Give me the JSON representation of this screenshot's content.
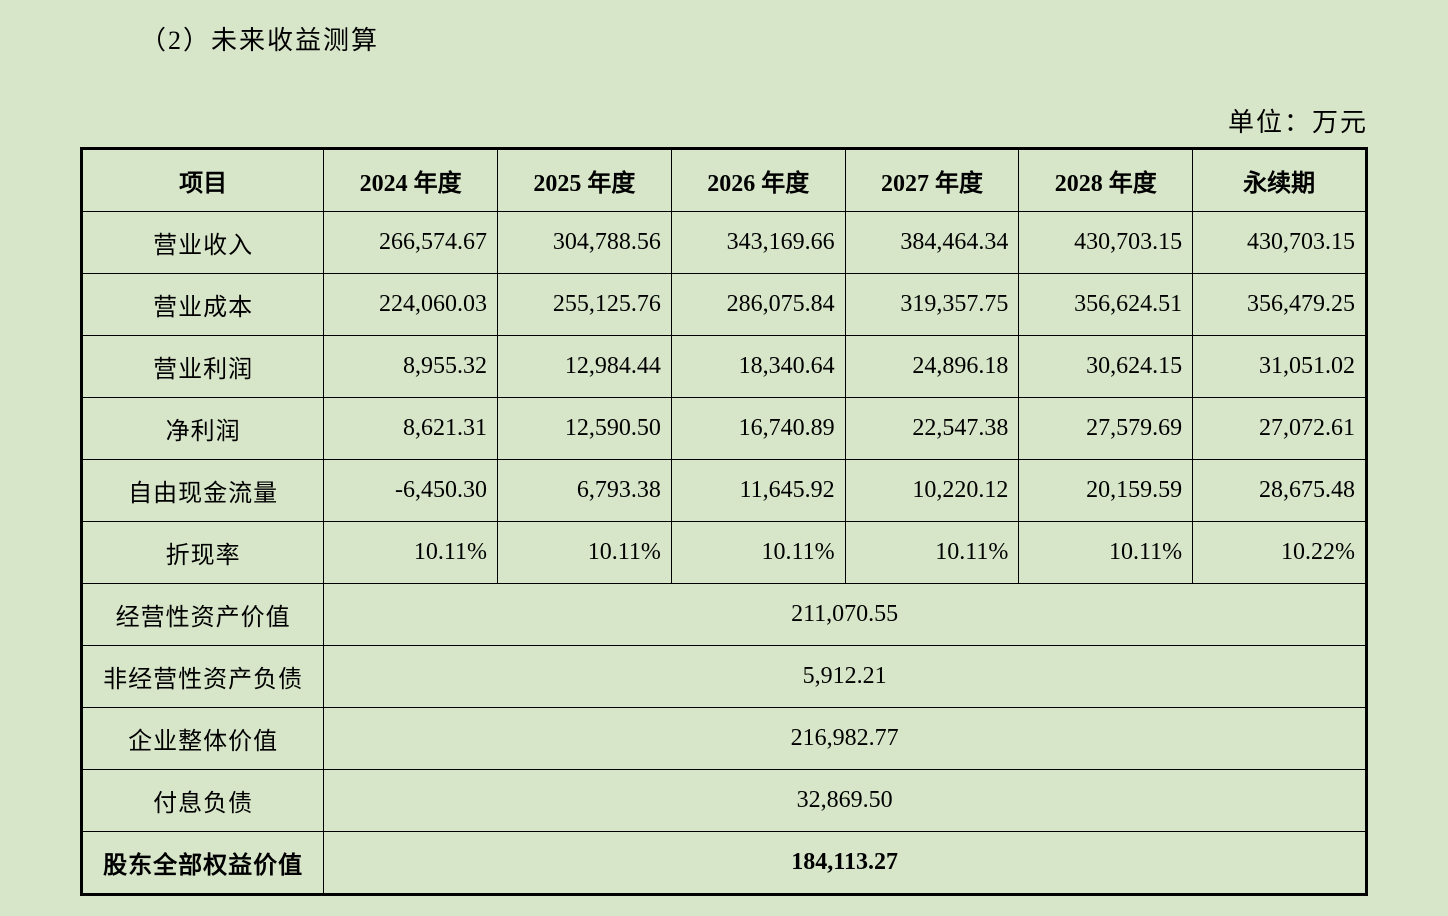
{
  "title": "（2）未来收益测算",
  "unit": "单位：万元",
  "table": {
    "headers": [
      "项目",
      "2024 年度",
      "2025 年度",
      "2026 年度",
      "2027 年度",
      "2028 年度",
      "永续期"
    ],
    "dataRows": [
      {
        "label": "营业收入",
        "values": [
          "266,574.67",
          "304,788.56",
          "343,169.66",
          "384,464.34",
          "430,703.15",
          "430,703.15"
        ]
      },
      {
        "label": "营业成本",
        "values": [
          "224,060.03",
          "255,125.76",
          "286,075.84",
          "319,357.75",
          "356,624.51",
          "356,479.25"
        ]
      },
      {
        "label": "营业利润",
        "values": [
          "8,955.32",
          "12,984.44",
          "18,340.64",
          "24,896.18",
          "30,624.15",
          "31,051.02"
        ]
      },
      {
        "label": "净利润",
        "values": [
          "8,621.31",
          "12,590.50",
          "16,740.89",
          "22,547.38",
          "27,579.69",
          "27,072.61"
        ]
      },
      {
        "label": "自由现金流量",
        "values": [
          "-6,450.30",
          "6,793.38",
          "11,645.92",
          "10,220.12",
          "20,159.59",
          "28,675.48"
        ]
      },
      {
        "label": "折现率",
        "values": [
          "10.11%",
          "10.11%",
          "10.11%",
          "10.11%",
          "10.11%",
          "10.22%"
        ]
      }
    ],
    "summaryRows": [
      {
        "label": "经营性资产价值",
        "value": "211,070.55",
        "bold": false
      },
      {
        "label": "非经营性资产负债",
        "value": "5,912.21",
        "bold": false
      },
      {
        "label": "企业整体价值",
        "value": "216,982.77",
        "bold": false
      },
      {
        "label": "付息负债",
        "value": "32,869.50",
        "bold": false
      },
      {
        "label": "股东全部权益价值",
        "value": "184,113.27",
        "bold": true
      }
    ]
  },
  "colors": {
    "background": "#d7e5c8",
    "border": "#000000",
    "text": "#000000"
  }
}
